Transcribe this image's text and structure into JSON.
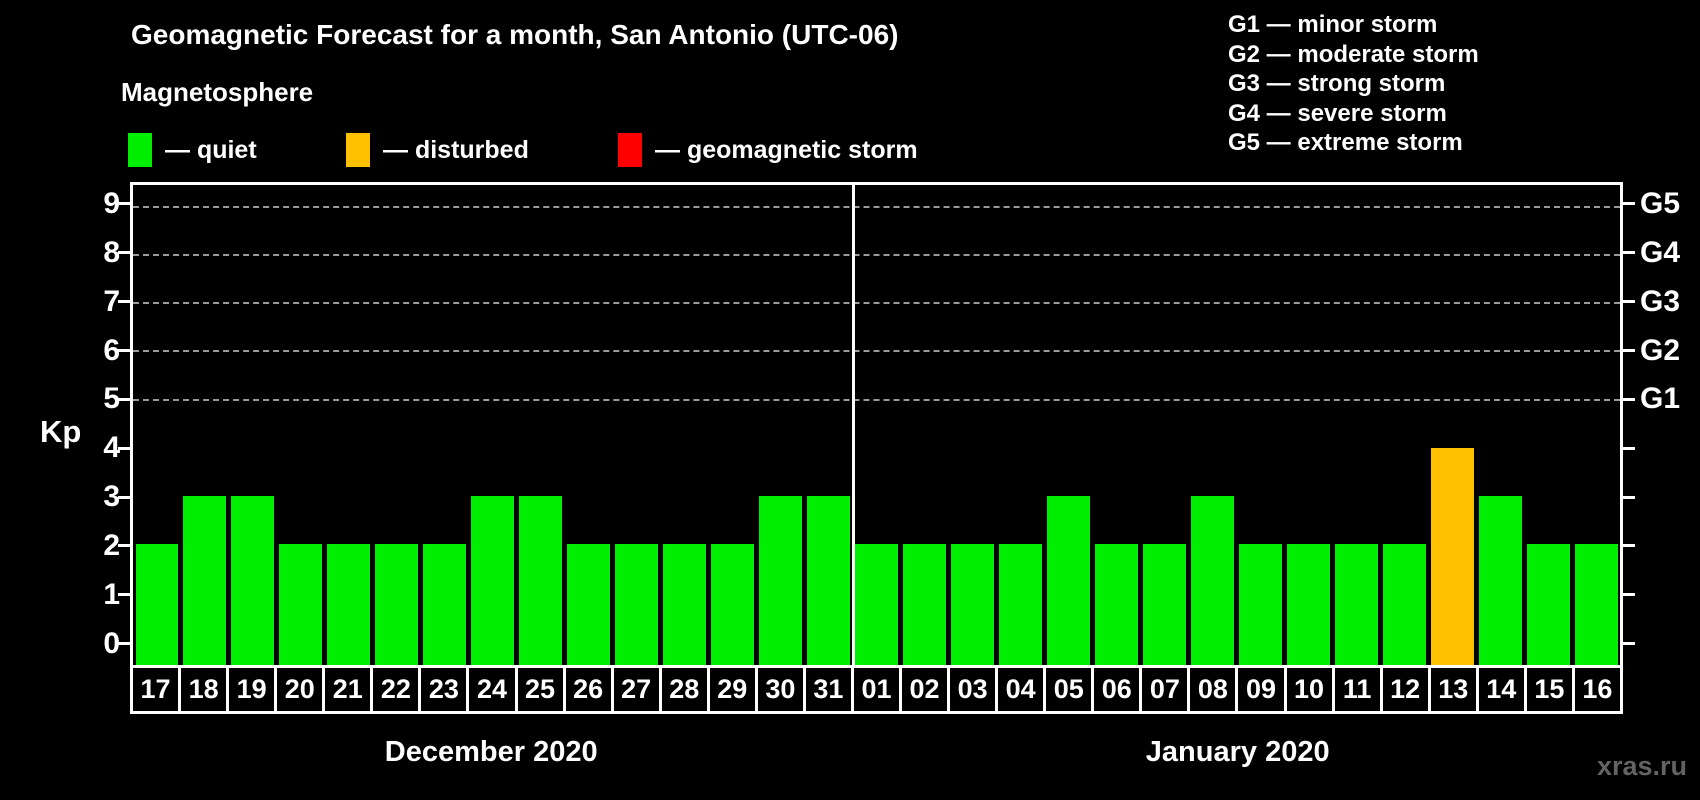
{
  "title": "Geomagnetic Forecast for a month, San Antonio (UTC-06)",
  "legend": {
    "heading": "Magnetosphere",
    "items": [
      {
        "name": "quiet",
        "label": "— quiet",
        "color": "#00ee00",
        "x": 128
      },
      {
        "name": "disturbed",
        "label": "— disturbed",
        "color": "#ffc000",
        "x": 346
      },
      {
        "name": "geomagnetic-storm",
        "label": "— geomagnetic storm",
        "color": "#ff0000",
        "x": 618
      }
    ]
  },
  "storm_scale_legend": [
    "G1 — minor storm",
    "G2 — moderate storm",
    "G3 — strong storm",
    "G4 — severe storm",
    "G5 — extreme storm"
  ],
  "watermark": "xras.ru",
  "chart_data": {
    "type": "bar",
    "ylabel": "Kp",
    "ylim": [
      -0.5,
      9.45
    ],
    "yticks": [
      0,
      1,
      2,
      3,
      4,
      5,
      6,
      7,
      8,
      9
    ],
    "gridlines_at": [
      5,
      6,
      7,
      8,
      9
    ],
    "grid": "dashed horizontal at Kp 5-9",
    "right_axis_labels": [
      {
        "kp": 5,
        "label": "G1"
      },
      {
        "kp": 6,
        "label": "G2"
      },
      {
        "kp": 7,
        "label": "G3"
      },
      {
        "kp": 8,
        "label": "G4"
      },
      {
        "kp": 9,
        "label": "G5"
      }
    ],
    "colors": {
      "quiet": "#00ee00",
      "disturbed": "#ffc000",
      "storm": "#ff0000"
    },
    "months": [
      {
        "label": "December 2020",
        "days": [
          {
            "day": "17",
            "kp": 2,
            "status": "quiet"
          },
          {
            "day": "18",
            "kp": 3,
            "status": "quiet"
          },
          {
            "day": "19",
            "kp": 3,
            "status": "quiet"
          },
          {
            "day": "20",
            "kp": 2,
            "status": "quiet"
          },
          {
            "day": "21",
            "kp": 2,
            "status": "quiet"
          },
          {
            "day": "22",
            "kp": 2,
            "status": "quiet"
          },
          {
            "day": "23",
            "kp": 2,
            "status": "quiet"
          },
          {
            "day": "24",
            "kp": 3,
            "status": "quiet"
          },
          {
            "day": "25",
            "kp": 3,
            "status": "quiet"
          },
          {
            "day": "26",
            "kp": 2,
            "status": "quiet"
          },
          {
            "day": "27",
            "kp": 2,
            "status": "quiet"
          },
          {
            "day": "28",
            "kp": 2,
            "status": "quiet"
          },
          {
            "day": "29",
            "kp": 2,
            "status": "quiet"
          },
          {
            "day": "30",
            "kp": 3,
            "status": "quiet"
          },
          {
            "day": "31",
            "kp": 3,
            "status": "quiet"
          }
        ]
      },
      {
        "label": "January 2020",
        "days": [
          {
            "day": "01",
            "kp": 2,
            "status": "quiet"
          },
          {
            "day": "02",
            "kp": 2,
            "status": "quiet"
          },
          {
            "day": "03",
            "kp": 2,
            "status": "quiet"
          },
          {
            "day": "04",
            "kp": 2,
            "status": "quiet"
          },
          {
            "day": "05",
            "kp": 3,
            "status": "quiet"
          },
          {
            "day": "06",
            "kp": 2,
            "status": "quiet"
          },
          {
            "day": "07",
            "kp": 2,
            "status": "quiet"
          },
          {
            "day": "08",
            "kp": 3,
            "status": "quiet"
          },
          {
            "day": "09",
            "kp": 2,
            "status": "quiet"
          },
          {
            "day": "10",
            "kp": 2,
            "status": "quiet"
          },
          {
            "day": "11",
            "kp": 2,
            "status": "quiet"
          },
          {
            "day": "12",
            "kp": 2,
            "status": "quiet"
          },
          {
            "day": "13",
            "kp": 4,
            "status": "disturbed"
          },
          {
            "day": "14",
            "kp": 3,
            "status": "quiet"
          },
          {
            "day": "15",
            "kp": 2,
            "status": "quiet"
          },
          {
            "day": "16",
            "kp": 2,
            "status": "quiet"
          }
        ]
      }
    ]
  }
}
